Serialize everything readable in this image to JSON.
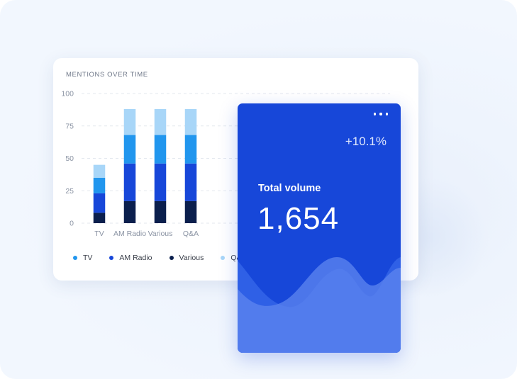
{
  "chart_card": {
    "title": "MENTIONS OVER TIME"
  },
  "chart_data": {
    "type": "bar",
    "stacked": true,
    "title": "MENTIONS OVER TIME",
    "categories": [
      "TV",
      "AM Radio",
      "Various",
      "Q&A"
    ],
    "ylim": [
      0,
      100
    ],
    "yticks": [
      "100",
      "75",
      "50",
      "25",
      "0"
    ],
    "grid": true,
    "legend_position": "bottom",
    "series": [
      {
        "name": "Various",
        "color": "#0b1f4d",
        "values": [
          8,
          17,
          17,
          17
        ]
      },
      {
        "name": "AM Radio",
        "color": "#1747d9",
        "values": [
          15,
          29,
          29,
          29
        ]
      },
      {
        "name": "TV",
        "color": "#2196ee",
        "values": [
          12,
          22,
          22,
          22
        ]
      },
      {
        "name": "Q&A",
        "color": "#a8d6f8",
        "values": [
          10,
          20,
          20,
          20
        ]
      }
    ]
  },
  "legend": [
    {
      "label": "TV",
      "color": "#2196ee"
    },
    {
      "label": "AM Radio",
      "color": "#1747d9"
    },
    {
      "label": "Various",
      "color": "#0b1f4d"
    },
    {
      "label": "Q&A",
      "color": "#a8d6f8"
    }
  ],
  "volume_card": {
    "change": "+10.1%",
    "label": "Total volume",
    "value": "1,654",
    "menu_icon": "more-horizontal-icon"
  },
  "colors": {
    "accent": "#1747d9",
    "card_bg": "#ffffff",
    "page_bg": "#eef4fd"
  }
}
